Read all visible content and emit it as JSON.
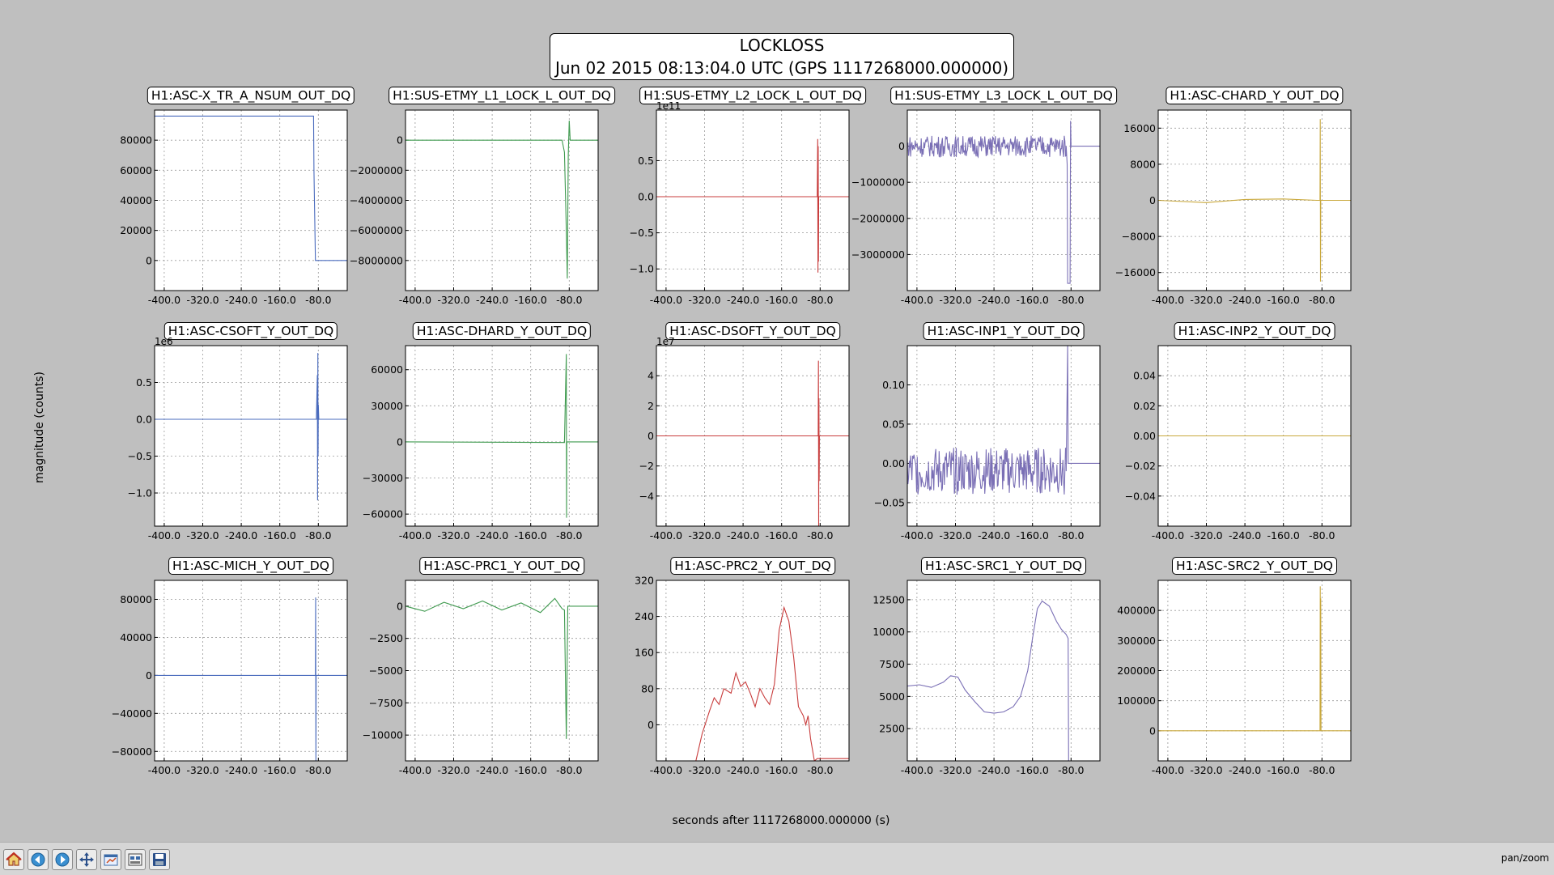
{
  "figure": {
    "title_line1": "LOCKLOSS",
    "title_line2": "Jun 02 2015 08:13:04.0 UTC (GPS 1117268000.000000)",
    "ylabel": "magnitude (counts)",
    "xlabel": "seconds after 1117268000.000000 (s)"
  },
  "toolbar": {
    "buttons": [
      "home-icon",
      "back-icon",
      "forward-icon",
      "pan-icon",
      "configure-subplots-icon",
      "edit-axes-icon",
      "save-icon"
    ],
    "status": "pan/zoom"
  },
  "colors": {
    "blue": "#4a6bbd",
    "green": "#3f9a4f",
    "red": "#c83c3c",
    "purple": "#7a6fb5",
    "gold": "#c9a83c"
  },
  "chart_data": [
    {
      "type": "line",
      "title": "H1:ASC-X_TR_A_NSUM_OUT_DQ",
      "color": "blue",
      "xlim": [
        -420,
        -20
      ],
      "ylim": [
        -20000,
        100000
      ],
      "yticks": [
        "0",
        "20000",
        "40000",
        "60000",
        "80000"
      ],
      "ytick_values": [
        0,
        20000,
        40000,
        60000,
        80000
      ],
      "xticks": [
        "-400.0",
        "-320.0",
        "-240.0",
        "-160.0",
        "-80.0"
      ],
      "xtick_values": [
        -400,
        -320,
        -240,
        -160,
        -80
      ],
      "x": [
        -420,
        -90,
        -89,
        -86,
        -20
      ],
      "y": [
        96000,
        96000,
        60000,
        0,
        0
      ]
    },
    {
      "type": "line",
      "title": "H1:SUS-ETMY_L1_LOCK_L_OUT_DQ",
      "color": "green",
      "xlim": [
        -420,
        -20
      ],
      "ylim": [
        -10000000,
        2000000
      ],
      "yticks": [
        "0",
        "−2000000",
        "−4000000",
        "−6000000",
        "−8000000"
      ],
      "ytick_values": [
        0,
        -2000000,
        -4000000,
        -6000000,
        -8000000
      ],
      "xticks": [
        "-400.0",
        "-320.0",
        "-240.0",
        "-160.0",
        "-80.0"
      ],
      "xtick_values": [
        -400,
        -320,
        -240,
        -160,
        -80
      ],
      "x": [
        -420,
        -95,
        -90,
        -86,
        -84,
        -82,
        -80,
        -78,
        -20
      ],
      "y": [
        0,
        0,
        -800000,
        -6000000,
        -9200000,
        -1000000,
        1300000,
        0,
        0
      ]
    },
    {
      "type": "line",
      "title": "H1:SUS-ETMY_L2_LOCK_L_OUT_DQ",
      "color": "red",
      "xlim": [
        -420,
        -20
      ],
      "ylim": [
        -1.3,
        1.2
      ],
      "offset_label": "1e11",
      "yticks": [
        "0.5",
        "0.0",
        "−0.5",
        "−1.0"
      ],
      "ytick_values": [
        0.5,
        0,
        -0.5,
        -1.0
      ],
      "xticks": [
        "-400.0",
        "-320.0",
        "-240.0",
        "-160.0",
        "-80.0"
      ],
      "xtick_values": [
        -400,
        -320,
        -240,
        -160,
        -80
      ],
      "x": [
        -420,
        -86,
        -85,
        -84.5,
        -84,
        -83.5,
        -83,
        -20
      ],
      "y": [
        0,
        0,
        0.8,
        -1.05,
        0.7,
        -0.9,
        0,
        0
      ]
    },
    {
      "type": "line",
      "title": "H1:SUS-ETMY_L3_LOCK_L_OUT_DQ",
      "color": "purple",
      "xlim": [
        -420,
        -20
      ],
      "ylim": [
        -4000000,
        1000000
      ],
      "yticks": [
        "0",
        "−1000000",
        "−2000000",
        "−3000000"
      ],
      "ytick_values": [
        0,
        -1000000,
        -2000000,
        -3000000
      ],
      "xticks": [
        "-400.0",
        "-320.0",
        "-240.0",
        "-160.0",
        "-80.0"
      ],
      "xtick_values": [
        -400,
        -320,
        -240,
        -160,
        -80
      ],
      "noise": {
        "from": -420,
        "to": -90,
        "amp": 300000,
        "base": 0
      },
      "x": [
        -90,
        -88,
        -87,
        -82,
        -81,
        -80,
        -20
      ],
      "y": [
        0,
        -500000,
        -3800000,
        -3800000,
        700000,
        0,
        0
      ]
    },
    {
      "type": "line",
      "title": "H1:ASC-CHARD_Y_OUT_DQ",
      "color": "gold",
      "xlim": [
        -420,
        -20
      ],
      "ylim": [
        -20000,
        20000
      ],
      "yticks": [
        "16000",
        "8000",
        "0",
        "−8000",
        "−16000"
      ],
      "ytick_values": [
        16000,
        8000,
        0,
        -8000,
        -16000
      ],
      "xticks": [
        "-400.0",
        "-320.0",
        "-240.0",
        "-160.0",
        "-80.0"
      ],
      "xtick_values": [
        -400,
        -320,
        -240,
        -160,
        -80
      ],
      "x": [
        -420,
        -320,
        -240,
        -160,
        -90,
        -84,
        -83.5,
        -83,
        -82.5,
        -20
      ],
      "y": [
        0,
        -500,
        200,
        300,
        0,
        0,
        18000,
        -18000,
        0,
        0
      ]
    },
    {
      "type": "line",
      "title": "H1:ASC-CSOFT_Y_OUT_DQ",
      "color": "blue",
      "xlim": [
        -420,
        -20
      ],
      "ylim": [
        -1.45,
        1.0
      ],
      "offset_label": "1e6",
      "yticks": [
        "0.5",
        "0.0",
        "−0.5",
        "−1.0"
      ],
      "ytick_values": [
        0.5,
        0,
        -0.5,
        -1.0
      ],
      "xticks": [
        "-400.0",
        "-320.0",
        "-240.0",
        "-160.0",
        "-80.0"
      ],
      "xtick_values": [
        -400,
        -320,
        -240,
        -160,
        -80
      ],
      "x": [
        -420,
        -84,
        -82,
        -81.5,
        -81,
        -80.5,
        -80,
        -79,
        -20
      ],
      "y": [
        0,
        0,
        0.6,
        -1.1,
        0.9,
        -0.5,
        0.2,
        0,
        0
      ]
    },
    {
      "type": "line",
      "title": "H1:ASC-DHARD_Y_OUT_DQ",
      "color": "green",
      "xlim": [
        -420,
        -20
      ],
      "ylim": [
        -70000,
        80000
      ],
      "yticks": [
        "60000",
        "30000",
        "0",
        "−30000",
        "−60000"
      ],
      "ytick_values": [
        60000,
        30000,
        0,
        -30000,
        -60000
      ],
      "xticks": [
        "-400.0",
        "-320.0",
        "-240.0",
        "-160.0",
        "-80.0"
      ],
      "xtick_values": [
        -400,
        -320,
        -240,
        -160,
        -80
      ],
      "x": [
        -420,
        -90,
        -86,
        -85.5,
        -85,
        -20
      ],
      "y": [
        0,
        -500,
        73000,
        -63000,
        0,
        0
      ]
    },
    {
      "type": "line",
      "title": "H1:ASC-DSOFT_Y_OUT_DQ",
      "color": "red",
      "xlim": [
        -420,
        -20
      ],
      "ylim": [
        -6000000,
        6000000
      ],
      "offset_label": "1e7",
      "yticks": [
        "4",
        "2",
        "0",
        "−2",
        "−4"
      ],
      "ytick_values": [
        4000000,
        2000000,
        0,
        -2000000,
        -4000000
      ],
      "xticks": [
        "-400.0",
        "-320.0",
        "-240.0",
        "-160.0",
        "-80.0"
      ],
      "xtick_values": [
        -400,
        -320,
        -240,
        -160,
        -80
      ],
      "x": [
        -420,
        -84,
        -83.5,
        -83,
        -82.5,
        -82,
        -81.5,
        -20
      ],
      "y": [
        0,
        0,
        5000000,
        -6000000,
        2500000,
        -3000000,
        0,
        0
      ]
    },
    {
      "type": "line",
      "title": "H1:ASC-INP1_Y_OUT_DQ",
      "color": "purple",
      "xlim": [
        -420,
        -20
      ],
      "ylim": [
        -0.08,
        0.15
      ],
      "yticks": [
        "0.10",
        "0.05",
        "0.00",
        "−0.05"
      ],
      "ytick_values": [
        0.1,
        0.05,
        0,
        -0.05
      ],
      "xticks": [
        "-400.0",
        "-320.0",
        "-240.0",
        "-160.0",
        "-80.0"
      ],
      "xtick_values": [
        -400,
        -320,
        -240,
        -160,
        -80
      ],
      "noise": {
        "from": -420,
        "to": -90,
        "amp": 0.03,
        "base": -0.01
      },
      "x": [
        -90,
        -87,
        -86,
        -85,
        -20
      ],
      "y": [
        -0.01,
        0.15,
        0,
        0,
        0
      ]
    },
    {
      "type": "line",
      "title": "H1:ASC-INP2_Y_OUT_DQ",
      "color": "gold",
      "xlim": [
        -420,
        -20
      ],
      "ylim": [
        -0.06,
        0.06
      ],
      "yticks": [
        "0.04",
        "0.02",
        "0.00",
        "−0.02",
        "−0.04"
      ],
      "ytick_values": [
        0.04,
        0.02,
        0,
        -0.02,
        -0.04
      ],
      "xticks": [
        "-400.0",
        "-320.0",
        "-240.0",
        "-160.0",
        "-80.0"
      ],
      "xtick_values": [
        -400,
        -320,
        -240,
        -160,
        -80
      ],
      "x": [
        -420,
        -20
      ],
      "y": [
        0,
        0
      ]
    },
    {
      "type": "line",
      "title": "H1:ASC-MICH_Y_OUT_DQ",
      "color": "blue",
      "xlim": [
        -420,
        -20
      ],
      "ylim": [
        -90000,
        100000
      ],
      "yticks": [
        "80000",
        "40000",
        "0",
        "−40000",
        "−80000"
      ],
      "ytick_values": [
        80000,
        40000,
        0,
        -40000,
        -80000
      ],
      "xticks": [
        "-400.0",
        "-320.0",
        "-240.0",
        "-160.0",
        "-80.0"
      ],
      "xtick_values": [
        -400,
        -320,
        -240,
        -160,
        -80
      ],
      "x": [
        -420,
        -86,
        -85.5,
        -85,
        -84.5,
        -20
      ],
      "y": [
        0,
        0,
        82000,
        -90000,
        0,
        0
      ]
    },
    {
      "type": "line",
      "title": "H1:ASC-PRC1_Y_OUT_DQ",
      "color": "green",
      "xlim": [
        -420,
        -20
      ],
      "ylim": [
        -12000,
        2000
      ],
      "yticks": [
        "0",
        "−2500",
        "−5000",
        "−7500",
        "−10000"
      ],
      "ytick_values": [
        0,
        -2500,
        -5000,
        -7500,
        -10000
      ],
      "xticks": [
        "-400.0",
        "-320.0",
        "-240.0",
        "-160.0",
        "-80.0"
      ],
      "xtick_values": [
        -400,
        -320,
        -240,
        -160,
        -80
      ],
      "x": [
        -420,
        -380,
        -340,
        -300,
        -260,
        -220,
        -180,
        -140,
        -110,
        -95,
        -90,
        -86,
        -83,
        -80,
        -20
      ],
      "y": [
        0,
        -400,
        300,
        -200,
        400,
        -300,
        250,
        -500,
        600,
        -200,
        -300,
        -10300,
        0,
        0,
        0
      ]
    },
    {
      "type": "line",
      "title": "H1:ASC-PRC2_Y_OUT_DQ",
      "color": "red",
      "xlim": [
        -420,
        -20
      ],
      "ylim": [
        -80,
        320
      ],
      "yticks": [
        "320",
        "240",
        "160",
        "80",
        "0"
      ],
      "ytick_values": [
        320,
        240,
        160,
        80,
        0
      ],
      "xticks": [
        "-400.0",
        "-320.0",
        "-240.0",
        "-160.0",
        "-80.0"
      ],
      "xtick_values": [
        -400,
        -320,
        -240,
        -160,
        -80
      ],
      "x": [
        -338,
        -325,
        -310,
        -300,
        -290,
        -280,
        -265,
        -255,
        -245,
        -235,
        -225,
        -215,
        -205,
        -195,
        -185,
        -175,
        -165,
        -155,
        -145,
        -135,
        -125,
        -115,
        -110,
        -105,
        -100,
        -92,
        -86,
        -80,
        -60,
        -20
      ],
      "y": [
        -80,
        -20,
        30,
        60,
        45,
        80,
        70,
        115,
        85,
        95,
        70,
        40,
        80,
        60,
        45,
        90,
        210,
        260,
        230,
        150,
        40,
        20,
        0,
        20,
        -30,
        -80,
        -75,
        -75,
        -75,
        -75
      ]
    },
    {
      "type": "line",
      "title": "H1:ASC-SRC1_Y_OUT_DQ",
      "color": "purple",
      "xlim": [
        -420,
        -20
      ],
      "ylim": [
        0,
        14000
      ],
      "yticks": [
        "12500",
        "10000",
        "7500",
        "5000",
        "2500"
      ],
      "ytick_values": [
        12500,
        10000,
        7500,
        5000,
        2500
      ],
      "xticks": [
        "-400.0",
        "-320.0",
        "-240.0",
        "-160.0",
        "-80.0"
      ],
      "xtick_values": [
        -400,
        -320,
        -240,
        -160,
        -80
      ],
      "x": [
        -420,
        -395,
        -370,
        -345,
        -330,
        -315,
        -300,
        -280,
        -260,
        -240,
        -220,
        -200,
        -185,
        -170,
        -160,
        -150,
        -140,
        -125,
        -110,
        -100,
        -90,
        -86,
        -85,
        -20
      ],
      "y": [
        5800,
        5900,
        5700,
        6100,
        6600,
        6500,
        5500,
        4600,
        3800,
        3700,
        3800,
        4200,
        5000,
        7000,
        9500,
        11800,
        12400,
        12000,
        10800,
        10200,
        9800,
        9500,
        0,
        0
      ]
    },
    {
      "type": "line",
      "title": "H1:ASC-SRC2_Y_OUT_DQ",
      "color": "gold",
      "xlim": [
        -420,
        -20
      ],
      "ylim": [
        -100000,
        500000
      ],
      "yticks": [
        "400000",
        "300000",
        "200000",
        "100000",
        "0"
      ],
      "ytick_values": [
        400000,
        300000,
        200000,
        100000,
        0
      ],
      "xticks": [
        "-400.0",
        "-320.0",
        "-240.0",
        "-160.0",
        "-80.0"
      ],
      "xtick_values": [
        -400,
        -320,
        -240,
        -160,
        -80
      ],
      "x": [
        -420,
        -90,
        -84,
        -83.5,
        -83,
        -82.5,
        -82,
        -80,
        -20
      ],
      "y": [
        0,
        0,
        0,
        480000,
        60000,
        440000,
        0,
        0,
        0
      ]
    }
  ]
}
